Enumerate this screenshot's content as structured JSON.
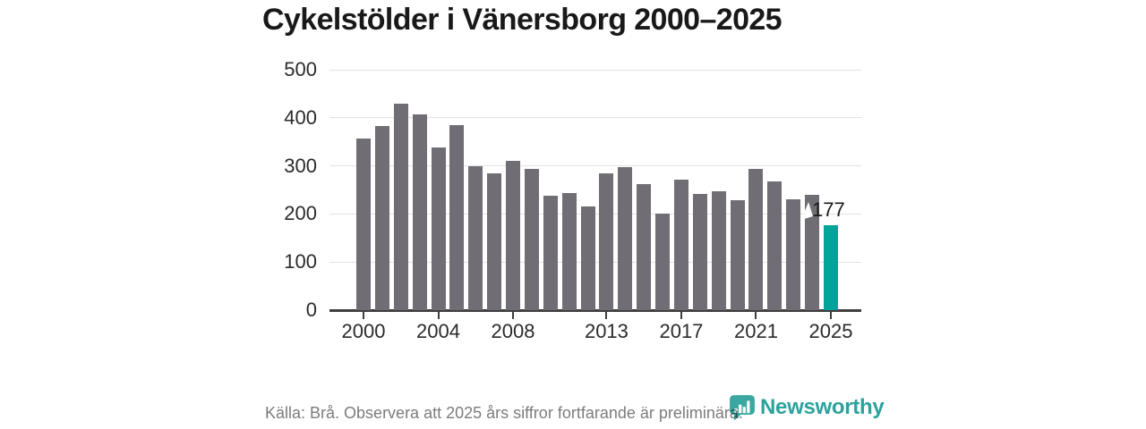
{
  "title": "Cykelstölder i Vänersborg 2000–2025",
  "chart_data": {
    "type": "bar",
    "title": "Cykelstölder i Vänersborg 2000–2025",
    "categories": [
      "2000",
      "2001",
      "2002",
      "2003",
      "2004",
      "2005",
      "2006",
      "2007",
      "2008",
      "2009",
      "2010",
      "2011",
      "2012",
      "2013",
      "2014",
      "2015",
      "2016",
      "2017",
      "2018",
      "2019",
      "2020",
      "2021",
      "2022",
      "2023",
      "2024",
      "2025"
    ],
    "values": [
      357,
      383,
      430,
      407,
      338,
      384,
      300,
      285,
      310,
      294,
      237,
      244,
      215,
      284,
      298,
      263,
      200,
      272,
      242,
      247,
      228,
      293,
      268,
      230,
      240,
      177
    ],
    "ylim": [
      0,
      500
    ],
    "yticks": [
      0,
      100,
      200,
      300,
      400,
      500
    ],
    "xtick_labels": [
      "2000",
      "2004",
      "2008",
      "2013",
      "2017",
      "2021",
      "2025"
    ],
    "grid": "horizontal",
    "legend": "none",
    "bar_color": "#716d74",
    "highlight_color": "#00a49a",
    "highlight": {
      "category": "2025",
      "value": 177,
      "label": "177"
    }
  },
  "footer": {
    "source_text": "Källa: Brå. Observera att 2025 års siffror fortfarande är preliminära."
  },
  "logo": {
    "text": "Newsworthy",
    "icon": "newsworthy-speech-bubble-bar-chart-icon",
    "color": "#2ba29c",
    "icon_color": "#3aa7a1"
  }
}
